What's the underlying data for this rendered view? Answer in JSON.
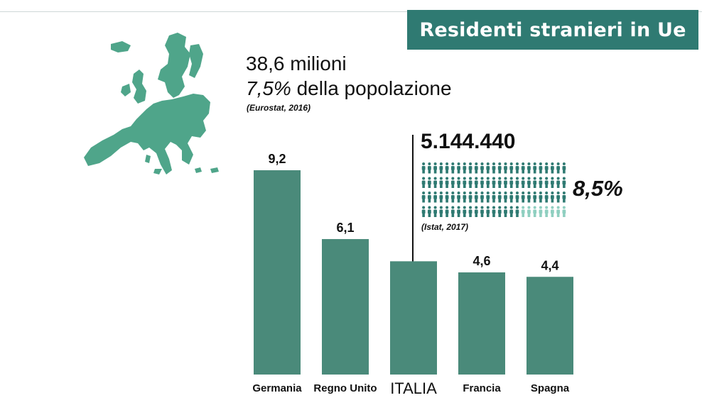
{
  "title": "Residenti stranieri in Ue",
  "headline": {
    "line1": "38,6 milioni",
    "line2_pct": "7,5%",
    "line2_rest": " della popolazione",
    "source": "(Eurostat, 2016)"
  },
  "italy_callout": {
    "total": "5.144.440",
    "share": "8,5%",
    "source": "(Istat, 2017)",
    "pictogram": {
      "share_value": 8.5,
      "icon": "person-icon",
      "filled_color": "#2f7a72",
      "light_color": "#8fcfc0"
    }
  },
  "colors": {
    "bar": "#4a8a7a",
    "banner": "#2f7a72",
    "map": "#4fa58a",
    "leader_line": "#111111"
  },
  "chart_data": {
    "type": "bar",
    "title": "",
    "xlabel": "",
    "ylabel": "",
    "categories": [
      "Germania",
      "Regno Unito",
      "ITALIA",
      "Francia",
      "Spagna"
    ],
    "values": [
      9.2,
      6.1,
      5.1,
      4.6,
      4.4
    ],
    "data_labels": [
      "9,2",
      "6,1",
      "",
      "4,6",
      "4,4"
    ],
    "highlight": "ITALIA",
    "ylim": [
      0,
      9.2
    ],
    "grid": false,
    "legend": "none"
  }
}
